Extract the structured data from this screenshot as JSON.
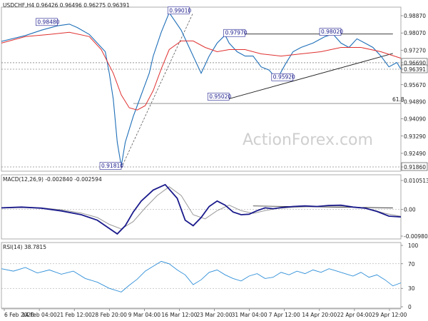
{
  "chart_data": {
    "type": "line",
    "instrument_header": "USDCHF,H4  0.96426 0.96496 0.96275 0.96391",
    "watermark": "ActionForex.com",
    "x_labels": [
      "6 Feb 2020",
      "14 Feb 04:00",
      "21 Feb 12:00",
      "28 Feb 20:00",
      "9 Mar 04:00",
      "16 Mar 12:00",
      "23 Mar 20:00",
      "31 Mar 04:00",
      "7 Apr 12:00",
      "14 Apr 20:00",
      "22 Apr 04:00",
      "29 Apr 12:00"
    ],
    "price_panel": {
      "y_ticks": [
        "0.98870",
        "0.98070",
        "0.97270",
        "0.96690",
        "0.96391",
        "0.95670",
        "0.94890",
        "0.94090",
        "0.93290",
        "0.92490",
        "0.91860"
      ],
      "ylim": [
        0.9186,
        0.9887
      ],
      "callouts": [
        "0.98480",
        "0.99010",
        "0.97970",
        "0.98020",
        "0.95920",
        "0.95020",
        "0.91810"
      ],
      "fib_label": "61.8",
      "series": [
        {
          "name": "USDCHF",
          "color": "#1e6fb8",
          "x": [
            0,
            6,
            10,
            14,
            17,
            19,
            22,
            24,
            26,
            27,
            28,
            29,
            30,
            31,
            33,
            35,
            37,
            38,
            40,
            42,
            45,
            47,
            49,
            50,
            52,
            54,
            56,
            57,
            59,
            61,
            63,
            65,
            67,
            69,
            71,
            73,
            75,
            78,
            81,
            83,
            85,
            87,
            89,
            91,
            93,
            95,
            97,
            99,
            100
          ],
          "y": [
            0.9768,
            0.9795,
            0.982,
            0.984,
            0.9848,
            0.9832,
            0.98,
            0.976,
            0.972,
            0.962,
            0.95,
            0.93,
            0.919,
            0.93,
            0.942,
            0.952,
            0.962,
            0.97,
            0.981,
            0.9901,
            0.982,
            0.974,
            0.966,
            0.962,
            0.97,
            0.976,
            0.9797,
            0.976,
            0.972,
            0.97,
            0.97,
            0.965,
            0.9635,
            0.9592,
            0.966,
            0.972,
            0.974,
            0.976,
            0.979,
            0.9802,
            0.976,
            0.974,
            0.978,
            0.976,
            0.974,
            0.97,
            0.965,
            0.967,
            0.9639
          ]
        },
        {
          "name": "",
          "color": "#e03030",
          "x": [
            0,
            6,
            12,
            17,
            22,
            25,
            28,
            30,
            32,
            34,
            36,
            38,
            40,
            42,
            45,
            48,
            51,
            54,
            57,
            61,
            65,
            70,
            75,
            80,
            85,
            90,
            95,
            100
          ],
          "y": [
            0.976,
            0.979,
            0.98,
            0.981,
            0.979,
            0.973,
            0.962,
            0.952,
            0.946,
            0.945,
            0.947,
            0.954,
            0.964,
            0.973,
            0.977,
            0.977,
            0.974,
            0.972,
            0.973,
            0.973,
            0.971,
            0.97,
            0.971,
            0.972,
            0.974,
            0.974,
            0.972,
            0.969
          ]
        }
      ]
    },
    "macd_panel": {
      "title": "MACD(12,26,9) -0.002840 -0.002594",
      "y_ticks": [
        "0.010513",
        "0.00",
        "-0.009804"
      ],
      "ylim": [
        -0.0098,
        0.0105
      ],
      "series": [
        {
          "name": "MACD",
          "color": "#1a1a8c",
          "x": [
            0,
            5,
            10,
            15,
            20,
            24,
            27,
            29,
            31,
            33,
            35,
            38,
            41,
            44,
            46,
            48,
            50,
            52,
            54,
            56,
            58,
            60,
            62,
            64,
            66,
            68,
            70,
            73,
            76,
            79,
            82,
            85,
            88,
            91,
            94,
            97,
            100
          ],
          "y": [
            0.0005,
            0.0008,
            0.0004,
            -0.0006,
            -0.002,
            -0.004,
            -0.007,
            -0.009,
            -0.006,
            -0.001,
            0.003,
            0.007,
            0.009,
            0.004,
            -0.004,
            -0.006,
            -0.003,
            0.001,
            0.003,
            0.0015,
            -0.001,
            -0.002,
            -0.0018,
            -0.0005,
            0.0005,
            0.0002,
            0.0006,
            0.001,
            0.0012,
            0.001,
            0.0014,
            0.0015,
            0.0008,
            0.0004,
            -0.0008,
            -0.0025,
            -0.0028
          ]
        },
        {
          "name": "Signal",
          "color": "#9a9a9a",
          "x": [
            0,
            5,
            10,
            15,
            20,
            24,
            27,
            30,
            33,
            36,
            39,
            42,
            45,
            48,
            51,
            54,
            57,
            60,
            63,
            66,
            69,
            72,
            75,
            78,
            81,
            84,
            87,
            90,
            93,
            96,
            100
          ],
          "y": [
            0.0004,
            0.0006,
            0.0005,
            -0.0002,
            -0.0014,
            -0.003,
            -0.0055,
            -0.0072,
            -0.0045,
            0.0005,
            0.005,
            0.0082,
            0.005,
            -0.002,
            -0.0035,
            -0.0005,
            0.0015,
            -0.0005,
            -0.0015,
            -0.0005,
            0.0003,
            0.0006,
            0.0008,
            0.001,
            0.0011,
            0.0012,
            0.001,
            0.0006,
            -0.0002,
            -0.0015,
            -0.0026
          ]
        }
      ]
    },
    "rsi_panel": {
      "title": "RSI(14) 38.7815",
      "y_ticks": [
        "100",
        "70",
        "30",
        "0"
      ],
      "ylim": [
        0,
        100
      ],
      "series": [
        {
          "name": "RSI",
          "color": "#2f8fd8",
          "x": [
            0,
            3,
            6,
            9,
            12,
            15,
            18,
            21,
            24,
            27,
            30,
            32,
            34,
            36,
            38,
            40,
            42,
            44,
            46,
            48,
            50,
            52,
            54,
            56,
            58,
            60,
            62,
            64,
            66,
            68,
            70,
            72,
            74,
            76,
            78,
            80,
            82,
            84,
            86,
            88,
            90,
            92,
            94,
            96,
            98,
            100
          ],
          "y": [
            62,
            58,
            64,
            55,
            60,
            53,
            58,
            46,
            40,
            30,
            24,
            35,
            45,
            58,
            66,
            74,
            70,
            60,
            52,
            36,
            44,
            56,
            60,
            52,
            46,
            42,
            50,
            54,
            46,
            48,
            56,
            52,
            58,
            54,
            60,
            56,
            62,
            58,
            54,
            50,
            56,
            48,
            52,
            44,
            34,
            39
          ]
        }
      ]
    }
  }
}
